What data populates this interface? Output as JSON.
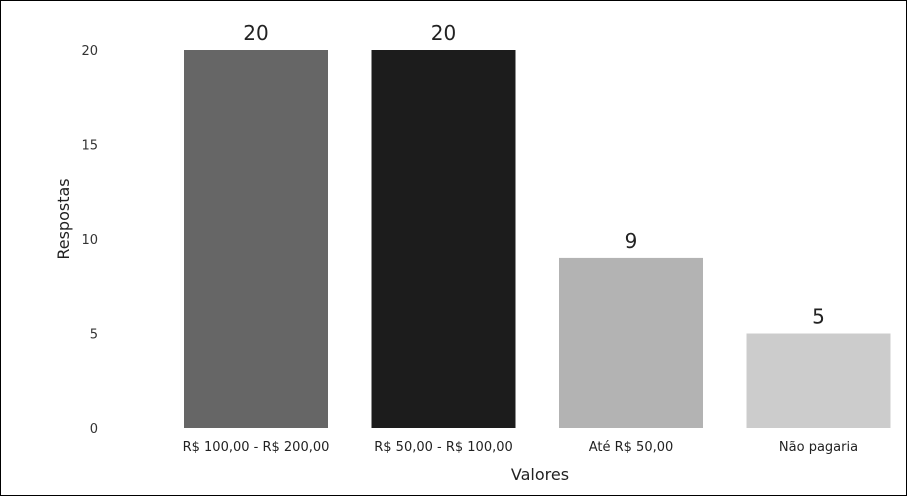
{
  "chart_data": {
    "type": "bar",
    "categories": [
      "R$ 100,00 - R$ 200,00",
      "R$ 50,00 - R$ 100,00",
      "Até R$ 50,00",
      "Não pagaria"
    ],
    "values": [
      20,
      20,
      9,
      5
    ],
    "data_labels": [
      "20",
      "20",
      "9",
      "5"
    ],
    "colors": [
      "#666666",
      "#1c1c1c",
      "#b3b3b3",
      "#cccccc"
    ],
    "xlabel": "Valores",
    "ylabel": "Respostas",
    "ylim": [
      0,
      20
    ],
    "yticks": [
      0,
      5,
      10,
      15,
      20
    ],
    "ytick_labels": [
      "0",
      "5",
      "10",
      "15",
      "20"
    ],
    "grid": false,
    "legend": "none"
  }
}
